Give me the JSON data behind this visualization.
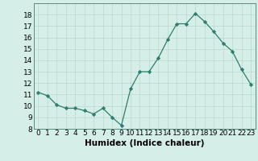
{
  "xlabel": "Humidex (Indice chaleur)",
  "x": [
    0,
    1,
    2,
    3,
    4,
    5,
    6,
    7,
    8,
    9,
    10,
    11,
    12,
    13,
    14,
    15,
    16,
    17,
    18,
    19,
    20,
    21,
    22,
    23
  ],
  "y": [
    11.2,
    10.9,
    10.1,
    9.8,
    9.8,
    9.6,
    9.3,
    9.8,
    9.0,
    8.3,
    11.5,
    13.0,
    13.0,
    14.2,
    15.8,
    17.2,
    17.2,
    18.1,
    17.4,
    16.5,
    15.5,
    14.8,
    13.2,
    11.9
  ],
  "line_color": "#2e7d6e",
  "marker": "D",
  "marker_size": 2.2,
  "bg_color": "#d6eee8",
  "grid_color": "#b8d8d0",
  "ylim": [
    8,
    19
  ],
  "xlim": [
    -0.5,
    23.5
  ],
  "yticks": [
    8,
    9,
    10,
    11,
    12,
    13,
    14,
    15,
    16,
    17,
    18
  ],
  "xticks": [
    0,
    1,
    2,
    3,
    4,
    5,
    6,
    7,
    8,
    9,
    10,
    11,
    12,
    13,
    14,
    15,
    16,
    17,
    18,
    19,
    20,
    21,
    22,
    23
  ],
  "tick_label_fontsize": 6.5,
  "xlabel_fontsize": 7.5
}
